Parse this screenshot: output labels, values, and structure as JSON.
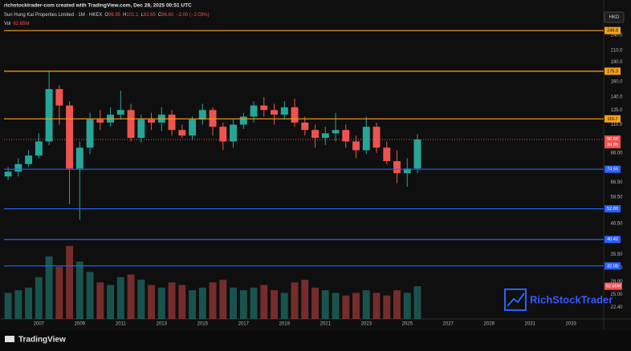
{
  "chart_data": {
    "type": "candlestick",
    "header": "richstocktrader-com created with TradingView.com, Dec 28, 2025 00:51 UTC",
    "symbol": "Sun Hung Kai Properties Limited · 1M · HKEX",
    "ohlc_legend": {
      "o_label": "O",
      "o": "99.95",
      "h_label": "H",
      "h": "101.1",
      "l_label": "L",
      "l": "92.65",
      "c_label": "C",
      "c": "96.60",
      "change": "−2.00 (−2.03%)"
    },
    "volume_legend": {
      "label": "Vol",
      "value": "62.65M"
    },
    "currency": "HKD",
    "watermark": "RichStockTrader",
    "brand": "TradingView",
    "log_scale": true,
    "grid": false,
    "up_color": "#26a69a",
    "down_color": "#ef5350",
    "xlim": [
      2005.3,
      2034.6
    ],
    "xticks": [
      2007,
      2009,
      2011,
      2013,
      2015,
      2017,
      2019,
      2021,
      2023,
      2025,
      2027,
      2029,
      2031,
      2033
    ],
    "ylim": [
      20.2,
      300
    ],
    "yticks": [
      {
        "value": 240,
        "label": "240.0"
      },
      {
        "value": 210,
        "label": "210.0"
      },
      {
        "value": 190,
        "label": "190.0"
      },
      {
        "value": 160,
        "label": "160.0"
      },
      {
        "value": 140,
        "label": "140.0"
      },
      {
        "value": 125,
        "label": "125.0"
      },
      {
        "value": 110,
        "label": "110.0"
      },
      {
        "value": 86,
        "label": "86.00"
      },
      {
        "value": 66.5,
        "label": "66.50"
      },
      {
        "value": 58.5,
        "label": "58.50"
      },
      {
        "value": 46.5,
        "label": "46.50"
      },
      {
        "value": 35.5,
        "label": "35.50"
      },
      {
        "value": 31.5,
        "label": "31.50"
      },
      {
        "value": 28,
        "label": "28.00"
      },
      {
        "value": 25,
        "label": "25.00"
      },
      {
        "value": 22.4,
        "label": "22.40"
      }
    ],
    "levels": [
      {
        "value": 249.8,
        "label": "249.8",
        "color": "#f7a21b"
      },
      {
        "value": 175.3,
        "label": "175.3",
        "color": "#f7a21b"
      },
      {
        "value": 115.7,
        "label": "115.7",
        "color": "#f7a21b"
      },
      {
        "value": 74.55,
        "label": "74.55",
        "color": "#2962ff"
      },
      {
        "value": 52.8,
        "label": "52.80",
        "color": "#2962ff"
      },
      {
        "value": 40.42,
        "label": "40.42",
        "color": "#2962ff"
      },
      {
        "value": 32.08,
        "label": "32.08",
        "color": "#2962ff"
      }
    ],
    "last_price": {
      "value": 96.6,
      "label": "96.60",
      "countdown": "3d 8h"
    },
    "last_volume": {
      "value": 62.65,
      "label": "62.65M"
    },
    "vlim": [
      0,
      160
    ],
    "x": [
      2005.5,
      2006.0,
      2006.5,
      2007.0,
      2007.5,
      2008.0,
      2008.5,
      2009.0,
      2009.5,
      2010.0,
      2010.5,
      2011.0,
      2011.5,
      2012.0,
      2012.5,
      2013.0,
      2013.5,
      2014.0,
      2014.5,
      2015.0,
      2015.5,
      2016.0,
      2016.5,
      2017.0,
      2017.5,
      2018.0,
      2018.5,
      2019.0,
      2019.5,
      2020.0,
      2020.5,
      2021.0,
      2021.5,
      2022.0,
      2022.5,
      2023.0,
      2023.5,
      2024.0,
      2024.5,
      2025.0,
      2025.5
    ],
    "open": [
      70,
      73,
      78,
      84,
      95,
      150,
      130,
      75,
      90,
      115,
      112,
      120,
      125,
      98,
      115,
      112,
      120,
      105,
      100,
      115,
      125,
      108,
      95,
      110,
      118,
      130,
      125,
      120,
      128,
      112,
      105,
      98,
      102,
      105,
      95,
      88,
      108,
      90,
      80,
      72,
      75
    ],
    "high": [
      76,
      82,
      88,
      102,
      175,
      155,
      135,
      95,
      122,
      125,
      128,
      148,
      132,
      120,
      122,
      128,
      125,
      110,
      118,
      132,
      128,
      112,
      115,
      122,
      135,
      140,
      132,
      135,
      138,
      118,
      110,
      108,
      122,
      110,
      100,
      118,
      112,
      95,
      88,
      82,
      101.1
    ],
    "low": [
      68,
      70,
      76,
      82,
      92,
      110,
      55,
      48,
      85,
      105,
      108,
      115,
      95,
      94,
      105,
      104,
      100,
      98,
      96,
      110,
      100,
      88,
      90,
      106,
      112,
      118,
      110,
      115,
      108,
      100,
      90,
      92,
      95,
      90,
      82,
      85,
      86,
      78,
      66,
      64,
      72
    ],
    "close": [
      73,
      78,
      84,
      95,
      150,
      130,
      75,
      90,
      115,
      112,
      120,
      125,
      98,
      115,
      112,
      120,
      105,
      100,
      115,
      125,
      108,
      95,
      110,
      118,
      130,
      125,
      120,
      128,
      112,
      105,
      98,
      102,
      105,
      95,
      88,
      108,
      90,
      80,
      72,
      75,
      96.6
    ],
    "volume": [
      50,
      55,
      60,
      80,
      120,
      100,
      140,
      110,
      90,
      70,
      65,
      80,
      85,
      75,
      65,
      60,
      70,
      65,
      55,
      60,
      70,
      75,
      60,
      55,
      60,
      65,
      55,
      50,
      70,
      75,
      60,
      55,
      50,
      45,
      50,
      55,
      50,
      45,
      55,
      50,
      62.65
    ]
  }
}
